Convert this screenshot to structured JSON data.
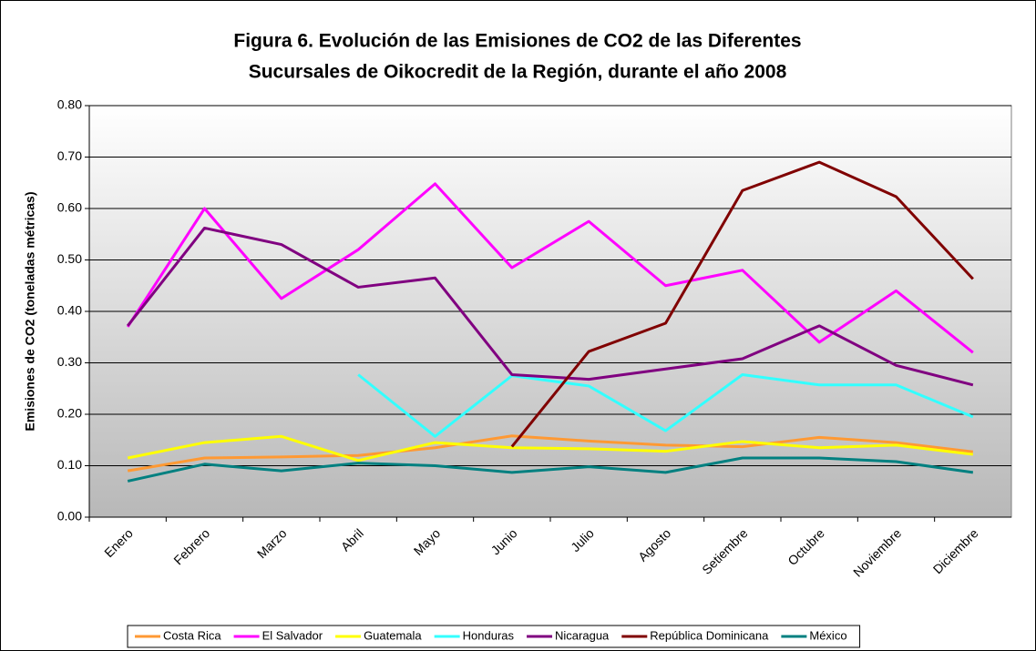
{
  "chart_data": {
    "type": "line",
    "title": [
      "Figura 6. Evolución de las Emisiones de CO2 de las Diferentes",
      "Sucursales de Oikocredit de la Región, durante el año 2008"
    ],
    "y_label": "Emisiones de CO2 (toneladas métricas)",
    "categories": [
      "Enero",
      "Febrero",
      "Marzo",
      "Abril",
      "Mayo",
      "Junio",
      "Julio",
      "Agosto",
      "Setiembre",
      "Octubre",
      "Noviembre",
      "Diciembre"
    ],
    "series": [
      {
        "name": "Costa Rica",
        "color": "#ff9933",
        "values": [
          0.09,
          0.115,
          0.117,
          0.12,
          0.135,
          0.158,
          0.148,
          0.14,
          0.137,
          0.155,
          0.145,
          0.127
        ]
      },
      {
        "name": "El Salvador",
        "color": "#ff00ff",
        "values": [
          0.37,
          0.6,
          0.425,
          0.52,
          0.648,
          0.485,
          0.575,
          0.45,
          0.48,
          0.34,
          0.44,
          0.32
        ]
      },
      {
        "name": "Guatemala",
        "color": "#ffff00",
        "values": [
          0.115,
          0.145,
          0.157,
          0.11,
          0.145,
          0.135,
          0.133,
          0.128,
          0.147,
          0.135,
          0.14,
          0.122
        ]
      },
      {
        "name": "Honduras",
        "color": "#33ffff",
        "values": [
          null,
          null,
          null,
          0.277,
          0.157,
          0.275,
          0.255,
          0.168,
          0.277,
          0.257,
          0.257,
          0.195
        ]
      },
      {
        "name": "Nicaragua",
        "color": "#800080",
        "values": [
          0.372,
          0.562,
          0.53,
          0.447,
          0.465,
          0.277,
          0.268,
          0.288,
          0.308,
          0.372,
          0.295,
          0.257
        ]
      },
      {
        "name": "República Dominicana",
        "color": "#800000",
        "values": [
          null,
          null,
          null,
          null,
          null,
          0.137,
          0.322,
          0.377,
          0.635,
          0.69,
          0.623,
          0.463
        ]
      },
      {
        "name": "México",
        "color": "#008080",
        "values": [
          0.07,
          0.103,
          0.09,
          0.105,
          0.1,
          0.087,
          0.098,
          0.087,
          0.115,
          0.115,
          0.108,
          0.087
        ]
      }
    ],
    "ylim": [
      0,
      0.8
    ],
    "yticks": [
      {
        "value": 0,
        "label": "0.00"
      },
      {
        "value": 0.1,
        "label": "0.10"
      },
      {
        "value": 0.2,
        "label": "0.20"
      },
      {
        "value": 0.3,
        "label": "0.30"
      },
      {
        "value": 0.4,
        "label": "0.40"
      },
      {
        "value": 0.5,
        "label": "0.50"
      },
      {
        "value": 0.6,
        "label": "0.60"
      },
      {
        "value": 0.7,
        "label": "0.70"
      },
      {
        "value": 0.8,
        "label": "0.80"
      }
    ],
    "grid": true,
    "legend": "bottom"
  }
}
